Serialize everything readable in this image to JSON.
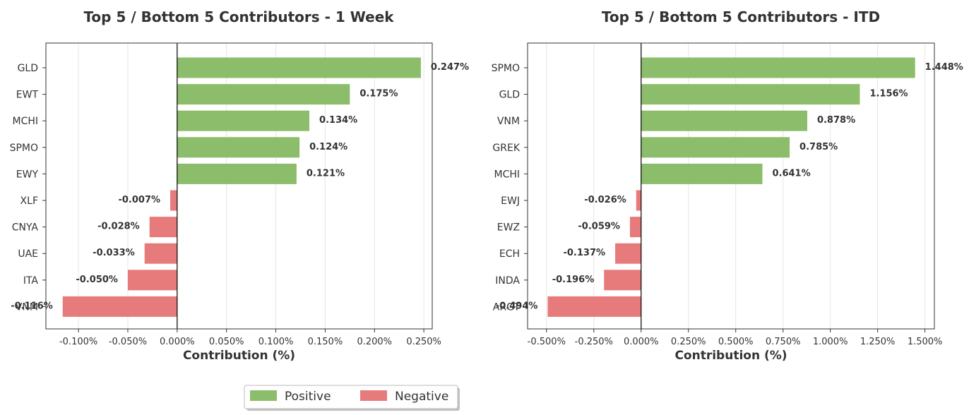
{
  "legend": {
    "placement": "bottom-center",
    "items": [
      {
        "label": "Positive",
        "color": "#8cbd6a"
      },
      {
        "label": "Negative",
        "color": "#e77b7c"
      }
    ]
  },
  "chart_data": [
    {
      "type": "bar",
      "orientation": "horizontal",
      "title": "Top 5 / Bottom 5 Contributors - 1 Week",
      "xlabel": "Contribution (%)",
      "xlim": [
        -0.133,
        0.2585
      ],
      "xticks": [
        -0.1,
        -0.05,
        0,
        0.05,
        0.1,
        0.15,
        0.2,
        0.25
      ],
      "xtick_labels": [
        "-0.100%",
        "-0.050%",
        "0.000%",
        "0.050%",
        "0.100%",
        "0.150%",
        "0.200%",
        "0.250%"
      ],
      "grid": "vertical",
      "categories": [
        "GLD",
        "EWT",
        "MCHI",
        "SPMO",
        "EWY",
        "XLF",
        "CNYA",
        "UAE",
        "ITA",
        "VNM"
      ],
      "values": [
        0.247,
        0.175,
        0.134,
        0.124,
        0.121,
        -0.007,
        -0.028,
        -0.033,
        -0.05,
        -0.116
      ],
      "value_labels": [
        "0.247%",
        "0.175%",
        "0.134%",
        "0.124%",
        "0.121%",
        "-0.007%",
        "-0.028%",
        "-0.033%",
        "-0.050%",
        "-0.116%"
      ]
    },
    {
      "type": "bar",
      "orientation": "horizontal",
      "title": "Top 5 / Bottom 5 Contributors - ITD",
      "xlabel": "Contribution (%)",
      "xlim": [
        -0.6,
        1.55
      ],
      "xticks": [
        -0.5,
        -0.25,
        0,
        0.25,
        0.5,
        0.75,
        1,
        1.25,
        1.5
      ],
      "xtick_labels": [
        "-0.500%",
        "-0.250%",
        "0.000%",
        "0.250%",
        "0.500%",
        "0.750%",
        "1.000%",
        "1.250%",
        "1.500%"
      ],
      "grid": "vertical",
      "categories": [
        "SPMO",
        "GLD",
        "VNM",
        "GREK",
        "MCHI",
        "EWJ",
        "EWZ",
        "ECH",
        "INDA",
        "ARGT"
      ],
      "values": [
        1.448,
        1.156,
        0.878,
        0.785,
        0.641,
        -0.026,
        -0.059,
        -0.137,
        -0.196,
        -0.494
      ],
      "value_labels": [
        "1.448%",
        "1.156%",
        "0.878%",
        "0.785%",
        "0.641%",
        "-0.026%",
        "-0.059%",
        "-0.137%",
        "-0.196%",
        "-0.494%"
      ]
    }
  ]
}
